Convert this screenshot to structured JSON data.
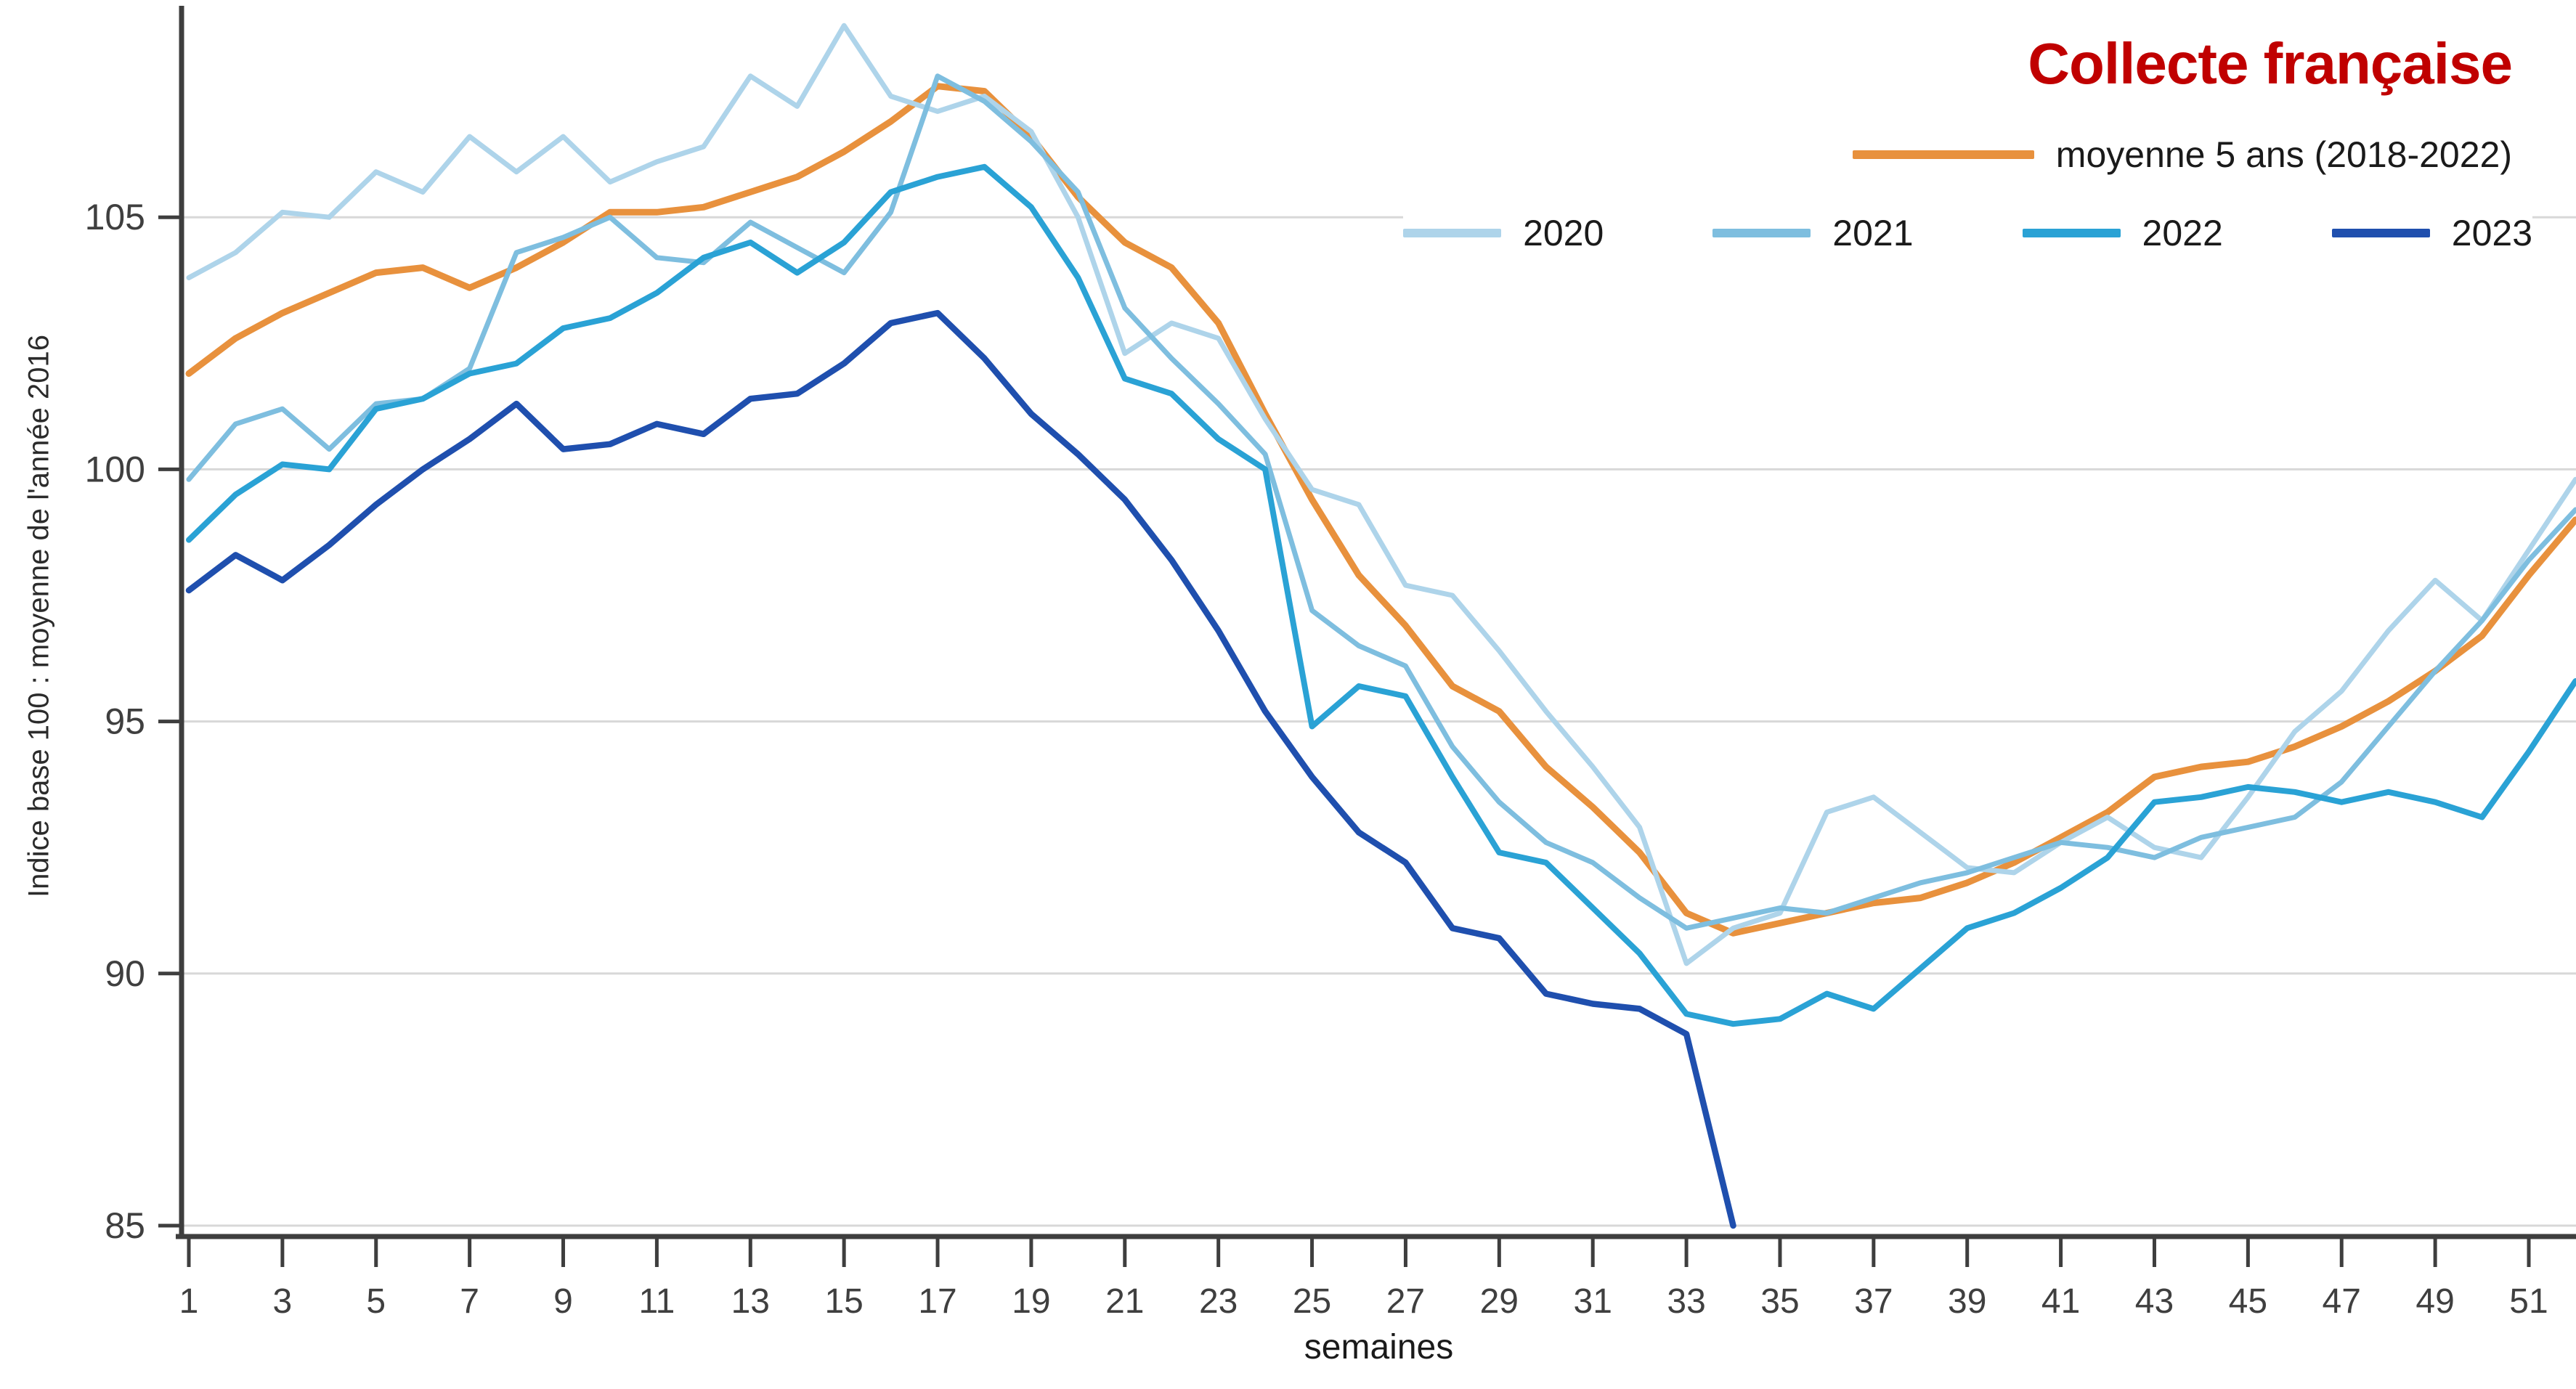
{
  "title": {
    "text": "Collecte française",
    "color": "#C00000"
  },
  "axis_colors": {
    "axis": "#3E3E3E",
    "grid": "#D8D8D8",
    "tick_text": "#3F3F3F"
  },
  "chart_data": {
    "type": "line",
    "title": "Collecte française",
    "xlabel": "semaines",
    "ylabel": "Indice base 100 : moyenne de l'année 2016",
    "ylim": [
      85,
      109.3
    ],
    "yticks": [
      85,
      90,
      95,
      100,
      105
    ],
    "xticks": [
      1,
      3,
      5,
      7,
      9,
      11,
      13,
      15,
      17,
      19,
      21,
      23,
      25,
      27,
      29,
      31,
      33,
      35,
      37,
      39,
      41,
      43,
      45,
      47,
      49,
      51
    ],
    "x_weeks": [
      1,
      2,
      3,
      4,
      5,
      6,
      7,
      8,
      9,
      10,
      11,
      12,
      13,
      14,
      15,
      16,
      17,
      18,
      19,
      20,
      21,
      22,
      23,
      24,
      25,
      26,
      27,
      28,
      29,
      30,
      31,
      32,
      33,
      34,
      35,
      36,
      37,
      38,
      39,
      40,
      41,
      42,
      43,
      44,
      45,
      46,
      47,
      48,
      49,
      50,
      51,
      52
    ],
    "grid": "horizontal",
    "legend_position": "top-right",
    "series": [
      {
        "name": "moyenne 5 ans (2018-2022)",
        "color": "#E8913D",
        "width": 9,
        "values": [
          101.9,
          102.6,
          103.1,
          103.5,
          103.9,
          104.0,
          103.6,
          104.0,
          104.5,
          105.1,
          105.1,
          105.2,
          105.5,
          105.8,
          106.3,
          106.9,
          107.6,
          107.5,
          106.6,
          105.4,
          104.5,
          104.0,
          102.9,
          101.1,
          99.4,
          97.9,
          96.9,
          95.7,
          95.2,
          94.1,
          93.3,
          92.4,
          91.2,
          90.8,
          91.0,
          91.2,
          91.4,
          91.5,
          91.8,
          92.2,
          92.7,
          93.2,
          93.9,
          94.1,
          94.2,
          94.5,
          94.9,
          95.4,
          96.0,
          96.7,
          97.9,
          99.0
        ]
      },
      {
        "name": "2020",
        "color": "#AED4EA",
        "width": 7,
        "values": [
          103.8,
          104.3,
          105.1,
          105.0,
          105.9,
          105.5,
          106.6,
          105.9,
          106.6,
          105.7,
          106.1,
          106.4,
          107.8,
          107.2,
          108.8,
          107.4,
          107.1,
          107.4,
          106.7,
          105.0,
          102.3,
          102.9,
          102.6,
          101.0,
          99.6,
          99.3,
          97.7,
          97.5,
          96.4,
          95.2,
          94.1,
          92.9,
          90.2,
          90.9,
          91.2,
          93.2,
          93.5,
          92.8,
          92.1,
          92.0,
          92.6,
          93.1,
          92.5,
          92.3,
          93.5,
          94.8,
          95.6,
          96.8,
          97.8,
          97.0,
          98.4,
          99.8
        ]
      },
      {
        "name": "2021",
        "color": "#7EBEDF",
        "width": 7,
        "values": [
          99.8,
          100.9,
          101.2,
          100.4,
          101.3,
          101.4,
          102.0,
          104.3,
          104.6,
          105.0,
          104.2,
          104.1,
          104.9,
          104.4,
          103.9,
          105.1,
          107.8,
          107.3,
          106.5,
          105.5,
          103.2,
          102.2,
          101.3,
          100.3,
          97.2,
          96.5,
          96.1,
          94.5,
          93.4,
          92.6,
          92.2,
          91.5,
          90.9,
          91.1,
          91.3,
          91.2,
          91.5,
          91.8,
          92.0,
          92.3,
          92.6,
          92.5,
          92.3,
          92.7,
          92.9,
          93.1,
          93.8,
          94.9,
          96.0,
          97.0,
          98.2,
          99.2
        ]
      },
      {
        "name": "2022",
        "color": "#2AA2D5",
        "width": 8,
        "values": [
          98.6,
          99.5,
          100.1,
          100.0,
          101.2,
          101.4,
          101.9,
          102.1,
          102.8,
          103.0,
          103.5,
          104.2,
          104.5,
          103.9,
          104.5,
          105.5,
          105.8,
          106.0,
          105.2,
          103.8,
          101.8,
          101.5,
          100.6,
          100.0,
          94.9,
          95.7,
          95.5,
          93.9,
          92.4,
          92.2,
          91.3,
          90.4,
          89.2,
          89.0,
          89.1,
          89.6,
          89.3,
          90.1,
          90.9,
          91.2,
          91.7,
          92.3,
          93.4,
          93.5,
          93.7,
          93.6,
          93.4,
          93.6,
          93.4,
          93.1,
          94.4,
          95.8
        ]
      },
      {
        "name": "2023",
        "color": "#1F4FAE",
        "width": 8.5,
        "values": [
          97.6,
          98.3,
          97.8,
          98.5,
          99.3,
          100.0,
          100.6,
          101.3,
          100.4,
          100.5,
          100.9,
          100.7,
          101.4,
          101.5,
          102.1,
          102.9,
          103.1,
          102.2,
          101.1,
          100.3,
          99.4,
          98.2,
          96.8,
          95.2,
          93.9,
          92.8,
          92.2,
          90.9,
          90.7,
          89.6,
          89.4,
          89.3,
          88.8,
          85.0
        ]
      }
    ]
  },
  "legend": {
    "row1_indices": [
      0
    ],
    "row2_indices": [
      1,
      2,
      3,
      4
    ]
  }
}
